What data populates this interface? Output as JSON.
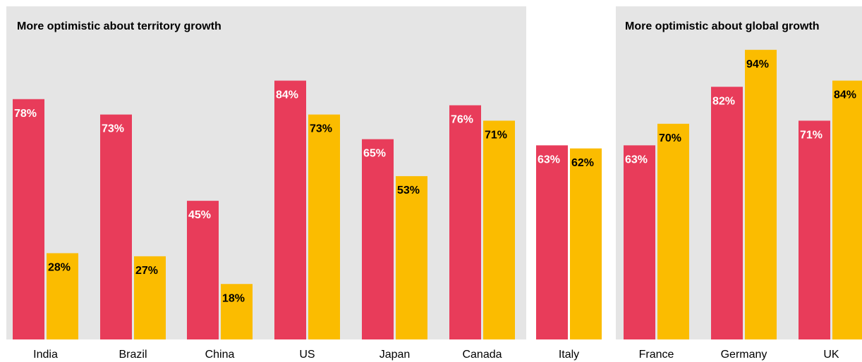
{
  "chart_data": {
    "type": "bar",
    "categories": [
      "India",
      "Brazil",
      "China",
      "US",
      "Japan",
      "Canada",
      "Italy",
      "France",
      "Germany",
      "UK"
    ],
    "series": [
      {
        "values": [
          78,
          73,
          45,
          84,
          65,
          76,
          63,
          63,
          82,
          71
        ],
        "color": "#e83c5a"
      },
      {
        "values": [
          28,
          27,
          18,
          73,
          53,
          71,
          62,
          70,
          94,
          84
        ],
        "color": "#fbbc00"
      }
    ],
    "value_suffix": "%",
    "ylim": [
      0,
      100
    ],
    "panels": [
      {
        "title": "More optimistic about territory growth",
        "categories": [
          "India",
          "Brazil",
          "China",
          "US",
          "Japan",
          "Canada"
        ]
      },
      {
        "title": "More optimistic about global growth",
        "categories": [
          "France",
          "Germany",
          "UK"
        ]
      }
    ],
    "grid": false,
    "legend": "none",
    "colors": {
      "panel_background": "#e5e5e5",
      "label_on_first_series": "#ffffff",
      "label_on_second_series": "#000000"
    }
  }
}
